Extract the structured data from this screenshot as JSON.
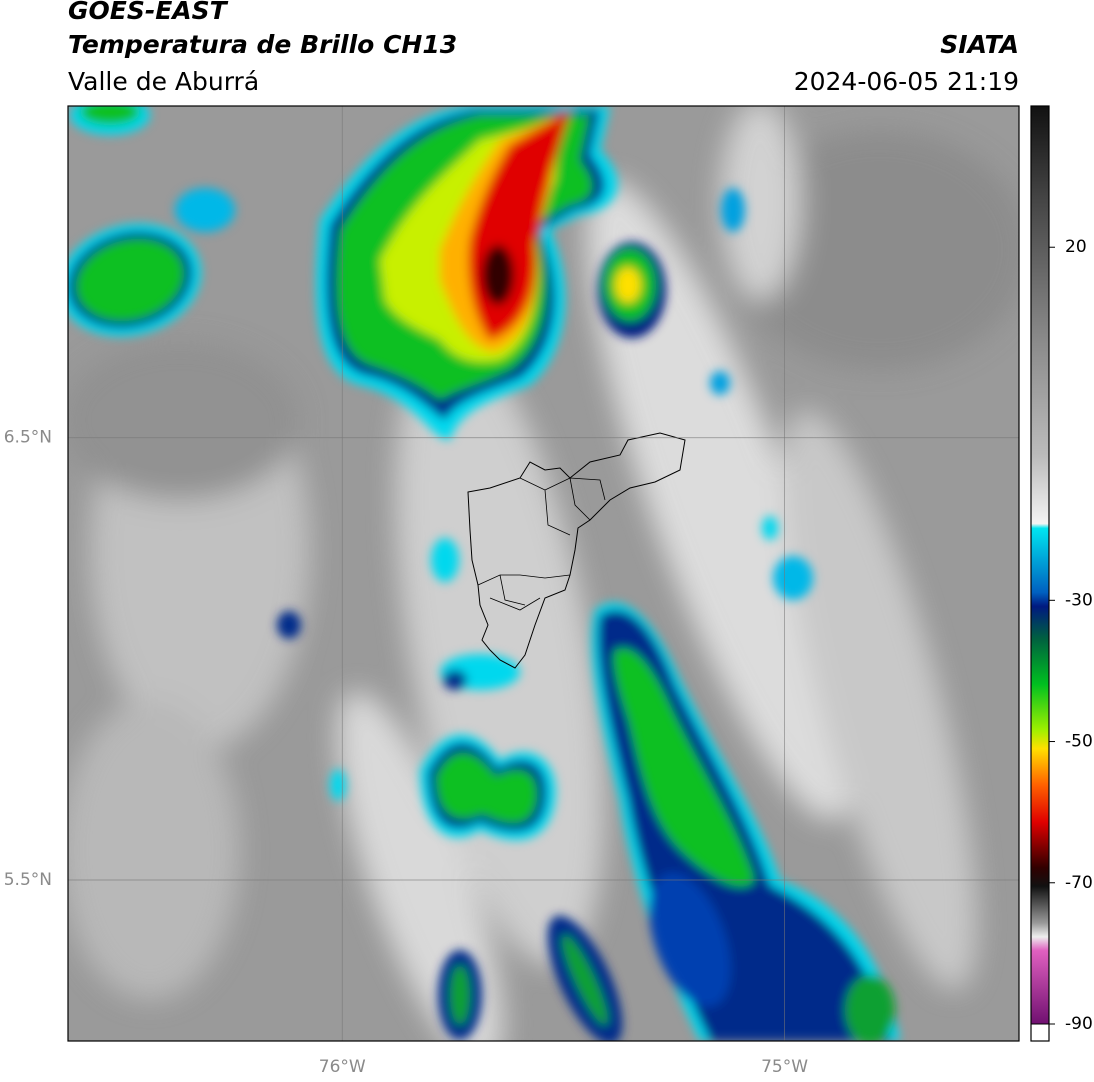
{
  "header": {
    "title": "GOES-EAST",
    "subtitle": "Temperatura de Brillo CH13",
    "region": "Valle de Aburrá",
    "source": "SIATA",
    "datetime": "2024-06-05 21:19"
  },
  "map": {
    "lat_lim": [
      5.136,
      7.25
    ],
    "lon_lim": [
      -76.62,
      -74.47
    ],
    "lat_ticks": [
      {
        "value": 6.5,
        "label": "6.5°N"
      },
      {
        "value": 5.5,
        "label": "5.5°N"
      }
    ],
    "lon_ticks": [
      {
        "value": -76,
        "label": "76°W"
      },
      {
        "value": -75,
        "label": "75°W"
      }
    ]
  },
  "colorbar": {
    "lim": [
      -90,
      40
    ],
    "ticks": [
      20,
      -30,
      -50,
      -70,
      -90
    ]
  }
}
